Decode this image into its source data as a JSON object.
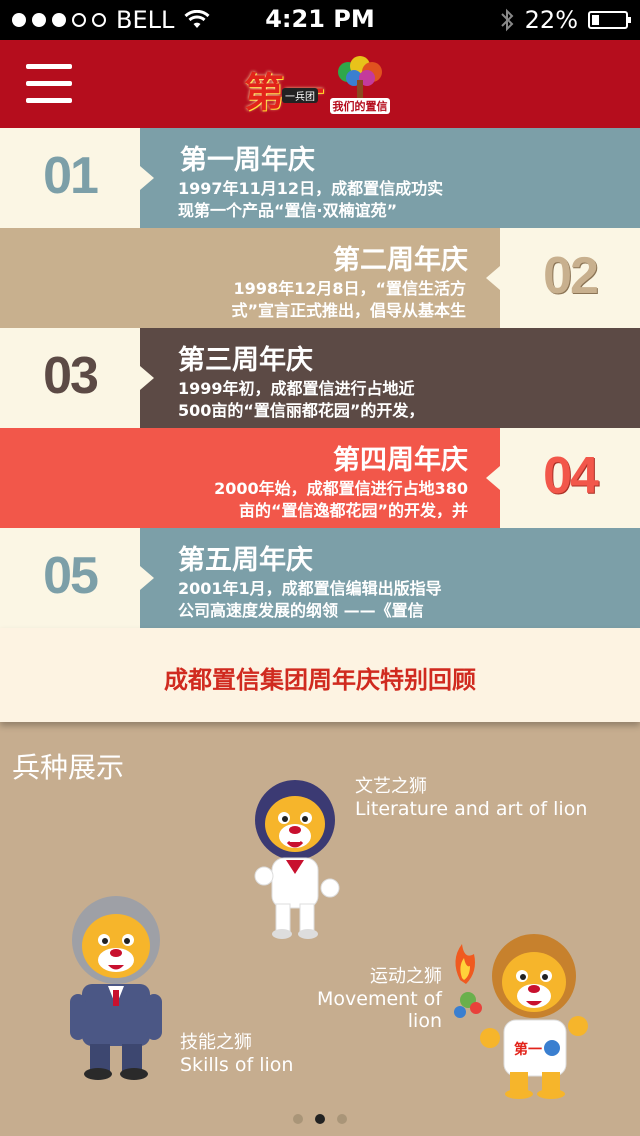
{
  "status_bar": {
    "carrier": "BELL",
    "time": "4:21 PM",
    "battery": "22%",
    "battery_level": 0.22,
    "signal_bars_filled": 3,
    "signal_bars_total": 5
  },
  "header": {
    "logo_text": "第一",
    "logo_sub": "一兵团",
    "logo2_text": "我们的置信"
  },
  "timeline": [
    {
      "number": "01",
      "title": "第一周年庆",
      "body": [
        "1997年11月12日，成都置信成功实",
        "现第一个产品“置信·双楠谊苑”"
      ]
    },
    {
      "number": "02",
      "title": "第二周年庆",
      "body": [
        "1998年12月8日，“置信生活方",
        "式”宣言正式推出，倡导从基本生"
      ]
    },
    {
      "number": "03",
      "title": "第三周年庆",
      "body": [
        "1999年初，成都置信进行占地近",
        "500亩的“置信丽都花园”的开发，"
      ]
    },
    {
      "number": "04",
      "title": "第四周年庆",
      "body": [
        "2000年始，成都置信进行占地380",
        "亩的“置信逸都花园”的开发，并"
      ]
    },
    {
      "number": "05",
      "title": "第五周年庆",
      "body": [
        "2001年1月，成都置信编辑出版指导",
        "公司高速度发展的纲领 ——《置信"
      ]
    }
  ],
  "banner": "成都置信集团周年庆特别回顾",
  "section_title": "兵种展示",
  "mascots": [
    {
      "cn": "文艺之狮",
      "en": "Literature and art of lion"
    },
    {
      "cn": "运动之狮",
      "en": "Movement of lion"
    },
    {
      "cn": "技能之狮",
      "en": "Skills of lion"
    }
  ],
  "pager": {
    "count": 3,
    "active_index": 1
  },
  "colors": {
    "header_red": "#b50d1d",
    "teal": "#7c9fa8",
    "tan": "#c8b08e",
    "dark_brown": "#5c4a45",
    "coral": "#f2574a",
    "cream": "#fbf6e4",
    "page_bg": "#c6ad8f"
  }
}
